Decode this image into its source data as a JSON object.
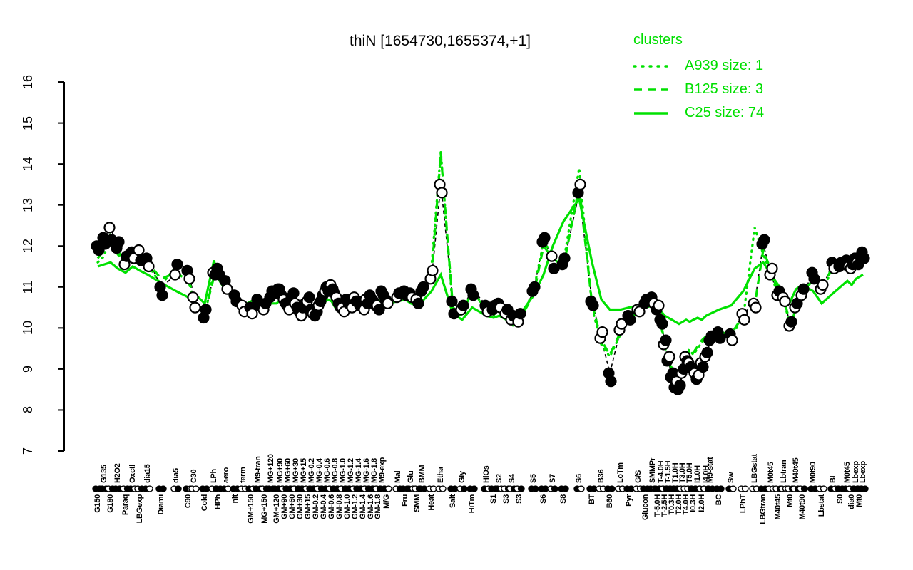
{
  "title": "thiN [1654730,1655374,+1]",
  "legend": {
    "title": "clusters",
    "entries": [
      {
        "label": "A939 size: 1",
        "style": "dotted"
      },
      {
        "label": "B125 size: 3",
        "style": "dashed"
      },
      {
        "label": "C25 size: 74",
        "style": "solid"
      }
    ]
  },
  "colors": {
    "cluster_green": "#00e100",
    "legend_text": "#00df00",
    "profile_line": "#000000",
    "marker_stroke": "#000000",
    "open_fill": "#ffffff",
    "background": "#ffffff"
  },
  "axes": {
    "y_ticks": [
      7,
      8,
      9,
      10,
      11,
      12,
      13,
      14,
      15,
      16
    ],
    "y_min": 7,
    "y_max": 16
  },
  "chart_data": {
    "type": "line",
    "title": "thiN [1654730,1655374,+1]",
    "ylim": [
      7,
      16
    ],
    "grid": false,
    "legend_position": "top-right",
    "conditions_note": "each row: [label, row(t=above axis,b=below axis), x_px, rep1_value, rep1_filled, rep2_value, rep2_filled]",
    "conditions": [
      [
        "G150",
        "b",
        137,
        12.0,
        1,
        11.9,
        1
      ],
      [
        "G135",
        "t",
        146,
        12.2,
        1,
        12.05,
        1
      ],
      [
        "G180",
        "b",
        155,
        12.45,
        0,
        12.15,
        1
      ],
      [
        "H2O2",
        "t",
        165,
        11.95,
        1,
        12.1,
        1
      ],
      [
        "Paraq",
        "b",
        176,
        11.55,
        0,
        11.75,
        1
      ],
      [
        "Oxctl",
        "t",
        186,
        11.85,
        1,
        11.7,
        0
      ],
      [
        "LBGexp",
        "b",
        196,
        11.9,
        0,
        11.65,
        1
      ],
      [
        "dia15",
        "t",
        207,
        11.7,
        1,
        11.5,
        0
      ],
      [
        "Diami",
        "b",
        226,
        11.0,
        1,
        10.8,
        1
      ],
      [
        "dia5",
        "t",
        247,
        11.3,
        0,
        11.55,
        1
      ],
      [
        "C90",
        "b",
        264,
        11.4,
        1,
        11.2,
        0
      ],
      [
        "C30",
        "t",
        272,
        10.75,
        0,
        10.5,
        0
      ],
      [
        "Cold",
        "b",
        287,
        10.25,
        1,
        10.45,
        1
      ],
      [
        "LPh",
        "t",
        300,
        11.35,
        0,
        11.3,
        1
      ],
      [
        "HPh",
        "b",
        306,
        11.45,
        1,
        11.3,
        1
      ],
      [
        "aero",
        "t",
        317,
        11.15,
        1,
        10.95,
        0
      ],
      [
        "nit",
        "b",
        330,
        10.8,
        1,
        10.65,
        1
      ],
      [
        "ferm",
        "t",
        341,
        10.55,
        0,
        10.4,
        0
      ],
      [
        "GM+150",
        "b",
        352,
        10.5,
        1,
        10.35,
        0
      ],
      [
        "M9-tran",
        "t",
        362,
        10.7,
        1,
        10.55,
        1
      ],
      [
        "MG+150",
        "b",
        371,
        10.45,
        0,
        10.6,
        1
      ],
      [
        "MG+120",
        "t",
        380,
        10.75,
        1,
        10.9,
        1
      ],
      [
        "GM+120",
        "b",
        388,
        10.85,
        1,
        10.95,
        0
      ],
      [
        "MG+90",
        "t",
        393,
        10.95,
        1,
        10.8,
        1
      ],
      [
        "GM+90",
        "b",
        399,
        10.7,
        0,
        10.6,
        1
      ],
      [
        "MG+60",
        "t",
        404,
        10.55,
        1,
        10.45,
        0
      ],
      [
        "GM+60",
        "b",
        410,
        10.75,
        1,
        10.85,
        1
      ],
      [
        "MG+30",
        "t",
        415,
        10.6,
        0,
        10.5,
        1
      ],
      [
        "GM+30",
        "b",
        421,
        10.4,
        1,
        10.3,
        0
      ],
      [
        "MG+15",
        "t",
        426,
        10.5,
        1,
        10.6,
        1
      ],
      [
        "GM+15",
        "b",
        432,
        10.65,
        0,
        10.75,
        1
      ],
      [
        "MG-0.2",
        "t",
        437,
        10.45,
        1,
        10.35,
        0
      ],
      [
        "GM-0.2",
        "b",
        443,
        10.3,
        1,
        10.4,
        1
      ],
      [
        "MG-0.4",
        "t",
        448,
        10.55,
        0,
        10.65,
        1
      ],
      [
        "GM-0.4",
        "b",
        454,
        10.8,
        1,
        10.9,
        0
      ],
      [
        "MG-0.6",
        "t",
        459,
        11.0,
        1,
        10.9,
        1
      ],
      [
        "GM-0.6",
        "b",
        465,
        11.05,
        0,
        10.95,
        1
      ],
      [
        "MG-0.8",
        "t",
        470,
        10.85,
        1,
        10.75,
        0
      ],
      [
        "GM-0.8",
        "b",
        476,
        10.6,
        1,
        10.5,
        1
      ],
      [
        "MG-1.0",
        "t",
        481,
        10.5,
        0,
        10.4,
        0
      ],
      [
        "GM-1.0",
        "b",
        487,
        10.7,
        1,
        10.6,
        1
      ],
      [
        "MG-1.2",
        "t",
        492,
        10.6,
        1,
        10.5,
        0
      ],
      [
        "GM-1.2",
        "b",
        498,
        10.75,
        0,
        10.65,
        1
      ],
      [
        "MG-1.4",
        "t",
        503,
        10.65,
        1,
        10.55,
        1
      ],
      [
        "GM-1.4",
        "b",
        509,
        10.55,
        1,
        10.45,
        0
      ],
      [
        "MG-1.6",
        "t",
        514,
        10.7,
        0,
        10.6,
        1
      ],
      [
        "GM-1.6",
        "b",
        520,
        10.8,
        1,
        10.7,
        1
      ],
      [
        "MG-1.8",
        "t",
        525,
        10.65,
        1,
        10.55,
        0
      ],
      [
        "GM-1.8",
        "b",
        530,
        10.55,
        0,
        10.45,
        1
      ],
      [
        "M9-exp",
        "t",
        536,
        10.9,
        1,
        10.8,
        1
      ],
      [
        "M/G",
        "b",
        542,
        10.7,
        1,
        10.6,
        0
      ],
      [
        "Mal",
        "t",
        558,
        10.75,
        0,
        10.85,
        1
      ],
      [
        "Fru",
        "b",
        568,
        10.9,
        1,
        10.8,
        1
      ],
      [
        "Glu",
        "t",
        576,
        10.85,
        1,
        10.75,
        0
      ],
      [
        "SMM",
        "b",
        585,
        10.7,
        0,
        10.6,
        1
      ],
      [
        "BMM",
        "t",
        592,
        10.9,
        1,
        11.0,
        1
      ],
      [
        "Heat",
        "b",
        605,
        11.2,
        0,
        11.4,
        0
      ],
      [
        "Etha",
        "t",
        618,
        13.5,
        0,
        13.3,
        0
      ],
      [
        "Salt",
        "b",
        635,
        10.65,
        1,
        10.35,
        1
      ],
      [
        "Gly",
        "t",
        648,
        10.45,
        0,
        10.55,
        1
      ],
      [
        "HiTm",
        "b",
        662,
        10.95,
        1,
        10.8,
        1
      ],
      [
        "HiOs",
        "t",
        682,
        10.55,
        1,
        10.4,
        0
      ],
      [
        "S1",
        "b",
        692,
        10.45,
        1,
        10.55,
        1
      ],
      [
        "S2",
        "t",
        700,
        10.6,
        1,
        10.5,
        0
      ],
      [
        "S3",
        "b",
        710,
        10.35,
        0,
        10.45,
        1
      ],
      [
        "S4",
        "t",
        718,
        10.2,
        0,
        10.3,
        1
      ],
      [
        "S3",
        "b",
        728,
        10.15,
        0,
        10.35,
        1
      ],
      [
        "S5",
        "t",
        748,
        10.9,
        1,
        11.0,
        1
      ],
      [
        "S6",
        "b",
        762,
        12.1,
        1,
        12.2,
        1
      ],
      [
        "S7",
        "t",
        775,
        11.75,
        0,
        11.45,
        1
      ],
      [
        "S8",
        "b",
        790,
        11.55,
        1,
        11.7,
        1
      ],
      [
        "S6",
        "t",
        812,
        13.3,
        1,
        13.5,
        0
      ],
      [
        "BT",
        "b",
        830,
        10.65,
        1,
        10.55,
        1
      ],
      [
        "B36",
        "t",
        843,
        9.75,
        0,
        9.9,
        0
      ],
      [
        "B60",
        "b",
        855,
        8.9,
        1,
        8.7,
        1
      ],
      [
        "LoTm",
        "t",
        870,
        9.95,
        0,
        10.1,
        0
      ],
      [
        "Pyr",
        "b",
        882,
        10.3,
        1,
        10.2,
        1
      ],
      [
        "G/S",
        "t",
        895,
        10.45,
        0,
        10.4,
        0
      ],
      [
        "Glucon",
        "b",
        905,
        10.6,
        1,
        10.7,
        1
      ],
      [
        "SMMPr",
        "t",
        915,
        10.75,
        1,
        10.6,
        0
      ],
      [
        "T-5.0H",
        "b",
        922,
        10.45,
        1,
        10.55,
        0
      ],
      [
        "T-4.0H",
        "t",
        927,
        10.2,
        1,
        10.1,
        1
      ],
      [
        "T-2.5H",
        "b",
        932,
        9.6,
        0,
        9.7,
        1
      ],
      [
        "T-1.5H",
        "t",
        937,
        9.2,
        1,
        9.3,
        0
      ],
      [
        "T0.3H",
        "b",
        942,
        8.8,
        1,
        8.9,
        1
      ],
      [
        "T1.0H",
        "t",
        947,
        8.55,
        1,
        8.7,
        0
      ],
      [
        "T2.0H",
        "b",
        952,
        8.5,
        1,
        8.6,
        1
      ],
      [
        "T3.0H",
        "t",
        957,
        8.9,
        0,
        9.0,
        1
      ],
      [
        "T4.0H",
        "b",
        962,
        9.3,
        0,
        9.2,
        1
      ],
      [
        "T5.0H",
        "t",
        967,
        9.15,
        0,
        9.05,
        1
      ],
      [
        "I0.3H",
        "b",
        972,
        9.0,
        1,
        8.9,
        0
      ],
      [
        "I1.0H",
        "t",
        978,
        8.75,
        1,
        8.85,
        0
      ],
      [
        "I2.0H",
        "b",
        984,
        9.15,
        0,
        9.05,
        1
      ],
      [
        "I4.0H",
        "t",
        990,
        9.3,
        0,
        9.4,
        1
      ],
      [
        "M9-stat",
        "t",
        996,
        9.7,
        1,
        9.8,
        1
      ],
      [
        "BC",
        "b",
        1008,
        9.9,
        1,
        9.75,
        1
      ],
      [
        "Sw",
        "t",
        1025,
        9.85,
        1,
        9.7,
        0
      ],
      [
        "LPhT",
        "b",
        1042,
        10.35,
        0,
        10.2,
        0
      ],
      [
        "LBGstat",
        "t",
        1058,
        10.6,
        0,
        10.5,
        0
      ],
      [
        "LBGtran",
        "b",
        1070,
        12.05,
        1,
        12.15,
        1
      ],
      [
        "M0t45",
        "t",
        1081,
        11.3,
        0,
        11.45,
        0
      ],
      [
        "M40t45",
        "b",
        1091,
        10.8,
        0,
        10.9,
        1
      ],
      [
        "Lbtran",
        "t",
        1099,
        10.75,
        0,
        10.65,
        0
      ],
      [
        "Mt0",
        "b",
        1108,
        10.05,
        0,
        10.15,
        1
      ],
      [
        "M40t45",
        "t",
        1116,
        10.5,
        0,
        10.6,
        1
      ],
      [
        "M40t90",
        "b",
        1125,
        10.8,
        0,
        10.95,
        1
      ],
      [
        "M0t90",
        "t",
        1140,
        11.35,
        1,
        11.2,
        1
      ],
      [
        "Lbstat",
        "b",
        1152,
        10.95,
        0,
        11.05,
        0
      ],
      [
        "Bl",
        "t",
        1168,
        11.6,
        1,
        11.45,
        0
      ],
      [
        "S0",
        "b",
        1178,
        11.5,
        1,
        11.6,
        1
      ],
      [
        "M0t45",
        "t",
        1188,
        11.65,
        1,
        11.5,
        0
      ],
      [
        "dia0",
        "b",
        1194,
        11.45,
        0,
        11.55,
        1
      ],
      [
        "Lbexp",
        "t",
        1200,
        11.7,
        1,
        11.6,
        0
      ],
      [
        "Mt0",
        "b",
        1205,
        11.55,
        1,
        11.75,
        1
      ],
      [
        "Lbexp",
        "t",
        1210,
        11.85,
        1,
        11.7,
        1
      ]
    ],
    "series": [
      {
        "name": "A939",
        "size": 1,
        "style": "dotted",
        "values": [
          11.6,
          11.75,
          12.3,
          11.95,
          11.45,
          11.85,
          11.7,
          11.55,
          11.05,
          11.5,
          11.3,
          10.6,
          10.3,
          11.4,
          11.2,
          11.0,
          10.75,
          10.5,
          10.6,
          10.55,
          10.45,
          10.8,
          10.9,
          10.8,
          10.6,
          10.45,
          10.75,
          10.65,
          10.3,
          10.5,
          10.7,
          10.35,
          10.2,
          10.55,
          10.85,
          11.05,
          10.95,
          10.75,
          10.5,
          10.4,
          10.7,
          10.6,
          10.75,
          10.65,
          10.45,
          10.6,
          10.8,
          10.55,
          10.45,
          10.85,
          10.7,
          10.75,
          10.95,
          10.85,
          10.7,
          10.95,
          11.5,
          14.3,
          10.4,
          10.3,
          10.95,
          10.4,
          10.3,
          10.55,
          10.2,
          10.05,
          10.15,
          10.9,
          12.1,
          11.8,
          11.6,
          13.9,
          10.5,
          9.6,
          9.3,
          9.85,
          10.25,
          10.45,
          10.6,
          10.7,
          10.35,
          10.05,
          9.55,
          9.25,
          8.95,
          8.75,
          8.7,
          8.95,
          9.25,
          9.45,
          9.35,
          9.5,
          9.65,
          9.75,
          9.7,
          9.85,
          9.8,
          10.25,
          12.45,
          11.8,
          11.3,
          10.8,
          10.65,
          10.05,
          10.4,
          10.7,
          11.25,
          10.85,
          11.5,
          11.4,
          11.7,
          11.35,
          11.6,
          11.45,
          11.9
        ]
      },
      {
        "name": "B125",
        "size": 3,
        "style": "dashed",
        "values": [
          11.7,
          11.9,
          12.05,
          11.8,
          11.55,
          11.7,
          11.75,
          11.6,
          11.2,
          11.35,
          11.15,
          10.7,
          10.35,
          11.25,
          11.3,
          11.05,
          10.85,
          10.6,
          10.55,
          10.65,
          10.5,
          10.7,
          10.8,
          10.9,
          10.65,
          10.5,
          10.7,
          10.55,
          10.35,
          10.45,
          10.6,
          10.4,
          10.25,
          10.5,
          10.75,
          10.95,
          11.0,
          10.8,
          10.55,
          10.45,
          10.65,
          10.55,
          10.7,
          10.6,
          10.5,
          10.65,
          10.75,
          10.6,
          10.5,
          10.8,
          10.65,
          10.7,
          10.85,
          10.8,
          10.65,
          10.85,
          11.3,
          14.25,
          10.5,
          10.35,
          10.9,
          10.45,
          10.35,
          10.5,
          10.25,
          10.1,
          10.2,
          10.8,
          12.0,
          11.7,
          11.5,
          13.45,
          10.6,
          9.7,
          9.35,
          9.9,
          10.2,
          10.4,
          10.55,
          10.65,
          10.4,
          10.1,
          9.6,
          9.3,
          9.0,
          8.8,
          8.75,
          9.0,
          9.3,
          9.5,
          9.4,
          9.55,
          9.7,
          9.8,
          9.75,
          9.9,
          9.85,
          10.3,
          10.55,
          11.9,
          11.4,
          10.85,
          10.7,
          10.1,
          10.45,
          10.75,
          11.3,
          10.9,
          11.55,
          11.45,
          11.6,
          11.4,
          11.65,
          11.5,
          11.8
        ]
      },
      {
        "name": "C25",
        "size": 74,
        "style": "solid",
        "values": [
          11.5,
          11.55,
          11.6,
          11.45,
          11.35,
          11.5,
          11.4,
          11.3,
          11.1,
          10.9,
          10.75,
          10.85,
          10.6,
          11.65,
          11.2,
          10.9,
          10.7,
          10.55,
          10.65,
          10.5,
          10.55,
          10.6,
          10.6,
          10.7,
          10.55,
          10.45,
          10.6,
          10.5,
          10.35,
          10.45,
          10.55,
          10.4,
          10.3,
          10.45,
          10.6,
          10.7,
          10.65,
          10.5,
          10.4,
          10.45,
          10.55,
          10.5,
          10.6,
          10.55,
          10.45,
          10.5,
          10.6,
          10.5,
          10.45,
          10.55,
          10.6,
          10.65,
          10.7,
          10.6,
          10.55,
          10.65,
          10.9,
          11.3,
          10.35,
          10.2,
          10.5,
          10.3,
          10.25,
          10.3,
          10.2,
          10.25,
          10.3,
          10.8,
          11.3,
          12.0,
          12.6,
          13.15,
          11.6,
          10.7,
          10.45,
          10.45,
          10.5,
          10.55,
          10.5,
          10.55,
          10.45,
          10.4,
          10.3,
          10.25,
          10.2,
          10.15,
          10.1,
          10.15,
          10.2,
          10.15,
          10.2,
          10.25,
          10.2,
          10.3,
          10.35,
          10.45,
          10.55,
          10.9,
          11.45,
          11.6,
          11.3,
          11.05,
          10.85,
          10.65,
          10.95,
          11.05,
          10.9,
          10.6,
          10.85,
          11.0,
          11.15,
          11.05,
          11.2,
          11.25,
          11.3
        ]
      }
    ]
  }
}
